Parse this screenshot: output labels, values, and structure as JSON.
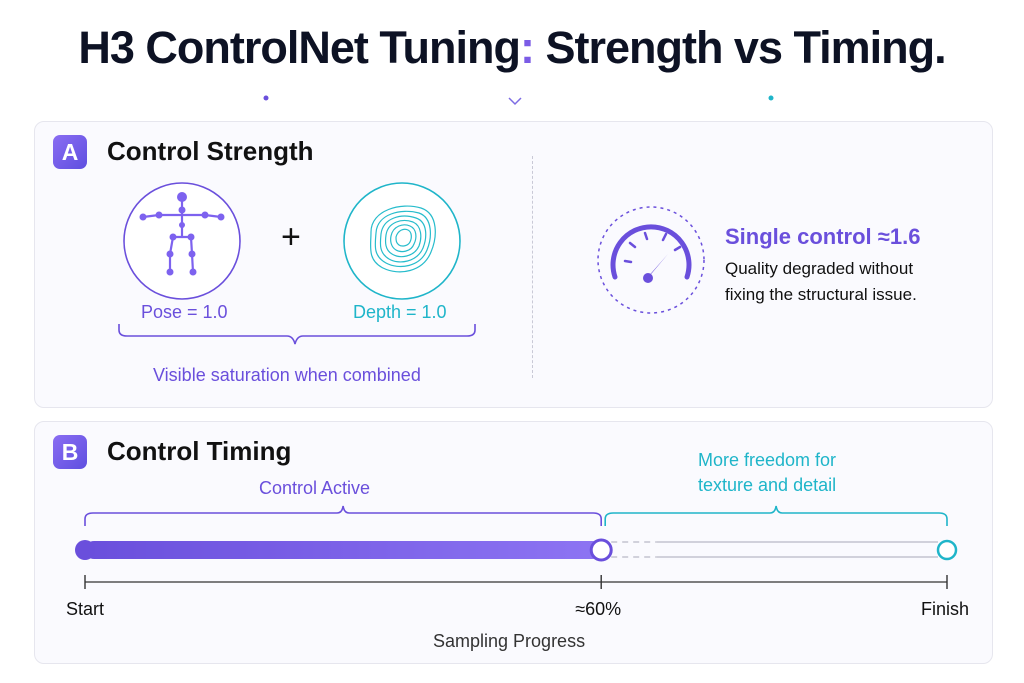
{
  "header": {
    "title_prefix": "H3 ControlNet Tuning",
    "title_colon": ":",
    "title_suffix": " Strength vs Timing."
  },
  "section_a": {
    "badge": "A",
    "title": "Control Strength",
    "pose_label": "Pose = 1.0",
    "plus_symbol": "+",
    "depth_label": "Depth = 1.0",
    "saturation_note": "Visible saturation when combined",
    "single_control_label": "Single control ≈1.6",
    "degraded_note_line1": "Quality degraded without",
    "degraded_note_line2": "fixing the structural issue."
  },
  "section_b": {
    "badge": "B",
    "title": "Control Timing",
    "active_label": "Control Active",
    "freedom_line1": "More freedom for",
    "freedom_line2": "texture and detail",
    "start_label": "Start",
    "mid_label": "≈60%",
    "finish_label": "Finish",
    "axis_label": "Sampling Progress",
    "active_fraction": 0.6
  },
  "icons": {
    "pose": "pose-skeleton-icon",
    "depth": "depth-contour-icon",
    "gauge": "gauge-icon"
  },
  "colors": {
    "purple": "#6a4fdc",
    "teal": "#1fb5c9",
    "track": "#7d62ef"
  }
}
